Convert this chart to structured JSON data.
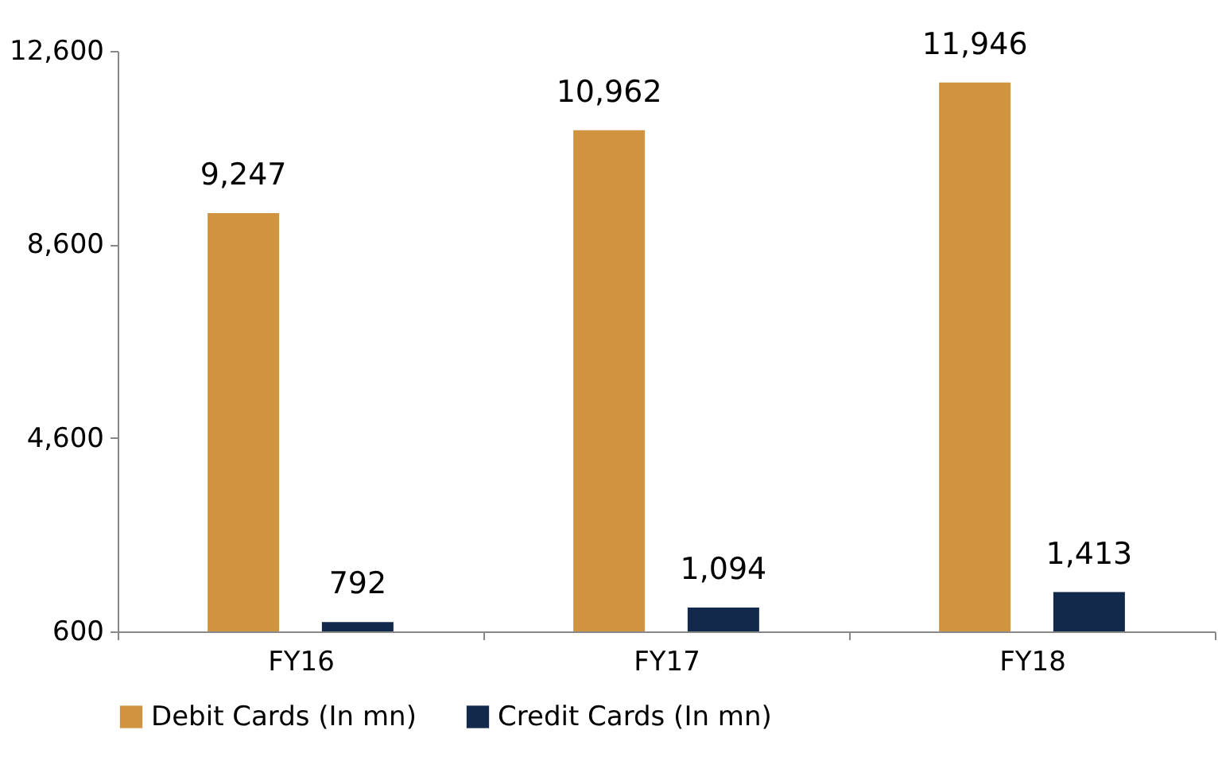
{
  "chart_data": {
    "type": "bar",
    "categories": [
      "FY16",
      "FY17",
      "FY18"
    ],
    "series": [
      {
        "name": "Debit Cards (In mn)",
        "color": "#d09441",
        "values": [
          9247,
          10962,
          11946
        ],
        "value_labels": [
          "9,247",
          "10,962",
          "11,946"
        ]
      },
      {
        "name": "Credit Cards (In mn)",
        "color": "#13294b",
        "values": [
          792,
          1094,
          1413
        ],
        "value_labels": [
          "792",
          "1,094",
          "1,413"
        ]
      }
    ],
    "ylim": [
      600,
      12600
    ],
    "yticks": [
      {
        "value": 600,
        "label": "600"
      },
      {
        "value": 4600,
        "label": "4,600"
      },
      {
        "value": 8600,
        "label": "8,600"
      },
      {
        "value": 12600,
        "label": "12,600"
      }
    ],
    "legend": "bottom",
    "grid": false
  }
}
